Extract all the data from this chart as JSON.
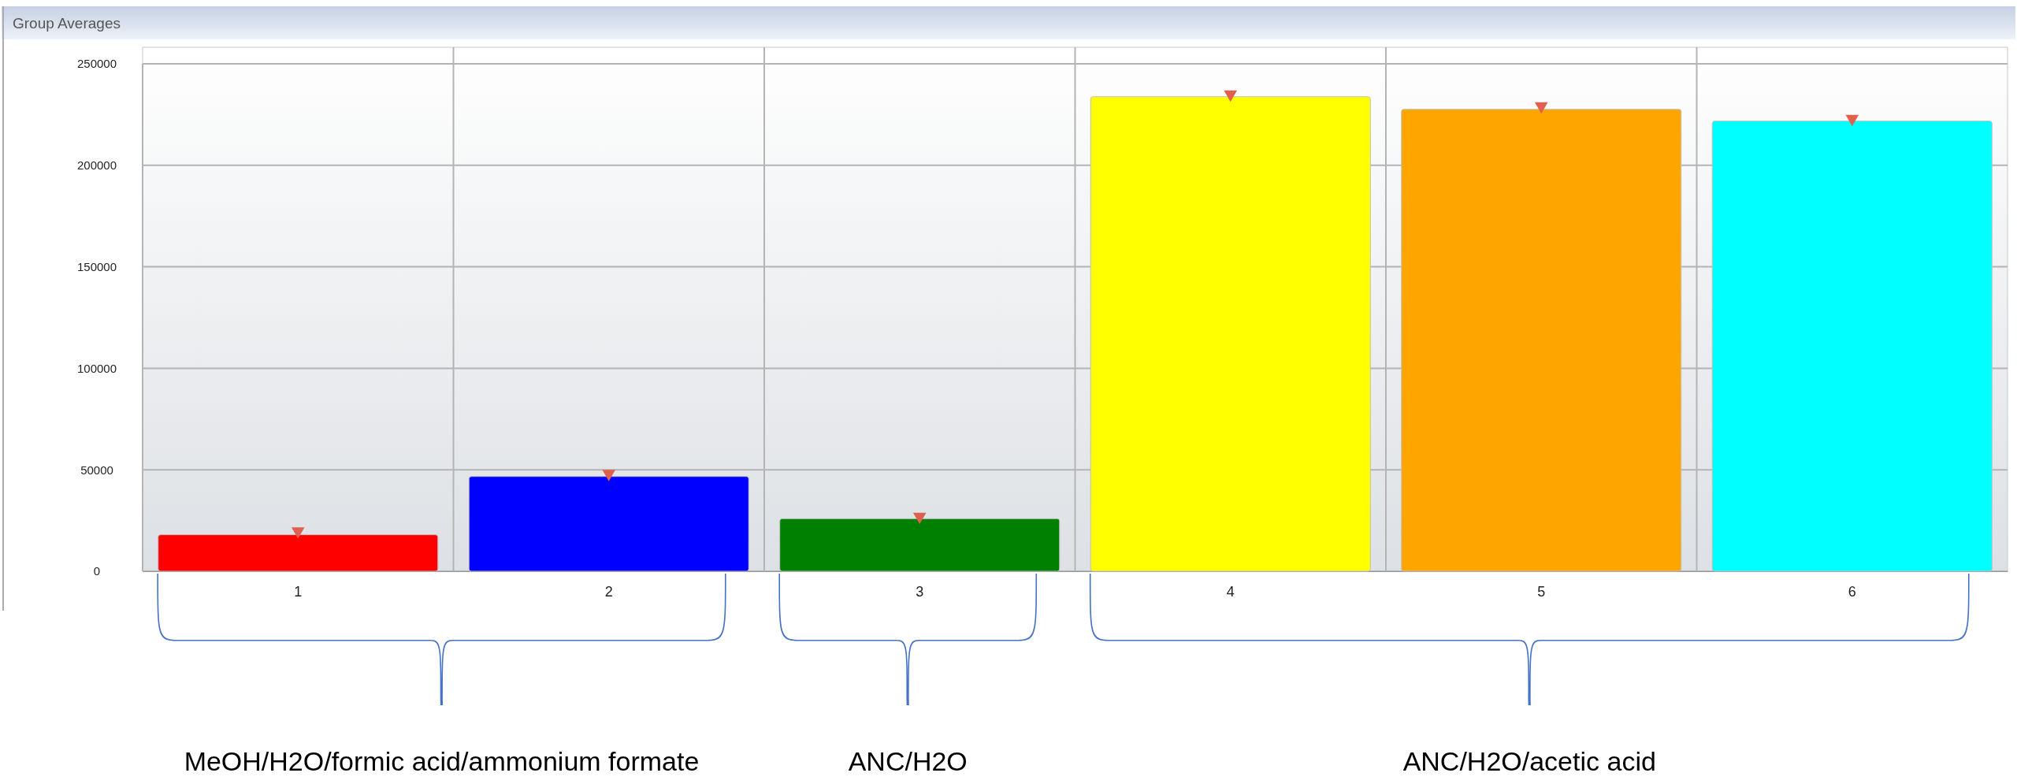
{
  "chart_data": {
    "type": "bar",
    "title": "Group Averages",
    "categories": [
      "1",
      "2",
      "3",
      "4",
      "5",
      "6"
    ],
    "series": [
      {
        "colors": [
          "#ff0000",
          "#0000ff",
          "#008000",
          "#ffff00",
          "#ffa500",
          "#00ffff"
        ],
        "values": [
          18000,
          46700,
          25900,
          233800,
          227600,
          221800
        ]
      },
      {
        "type": "scatter",
        "color": "#e0604f",
        "marker": "triangle",
        "x": [
          "1",
          "2",
          "3",
          "4",
          "5",
          "6"
        ],
        "values": [
          19800,
          48100,
          27000,
          235000,
          229200,
          223000
        ]
      }
    ],
    "ylim": [
      0,
      250000
    ],
    "yticks": [
      0,
      50000,
      100000,
      150000,
      200000,
      250000
    ],
    "grid": true,
    "annotations": [
      "MeOH/H2O/formic acid/ammonium formate",
      "ANC/H2O",
      "ANC/H2O/acetic acid"
    ]
  }
}
